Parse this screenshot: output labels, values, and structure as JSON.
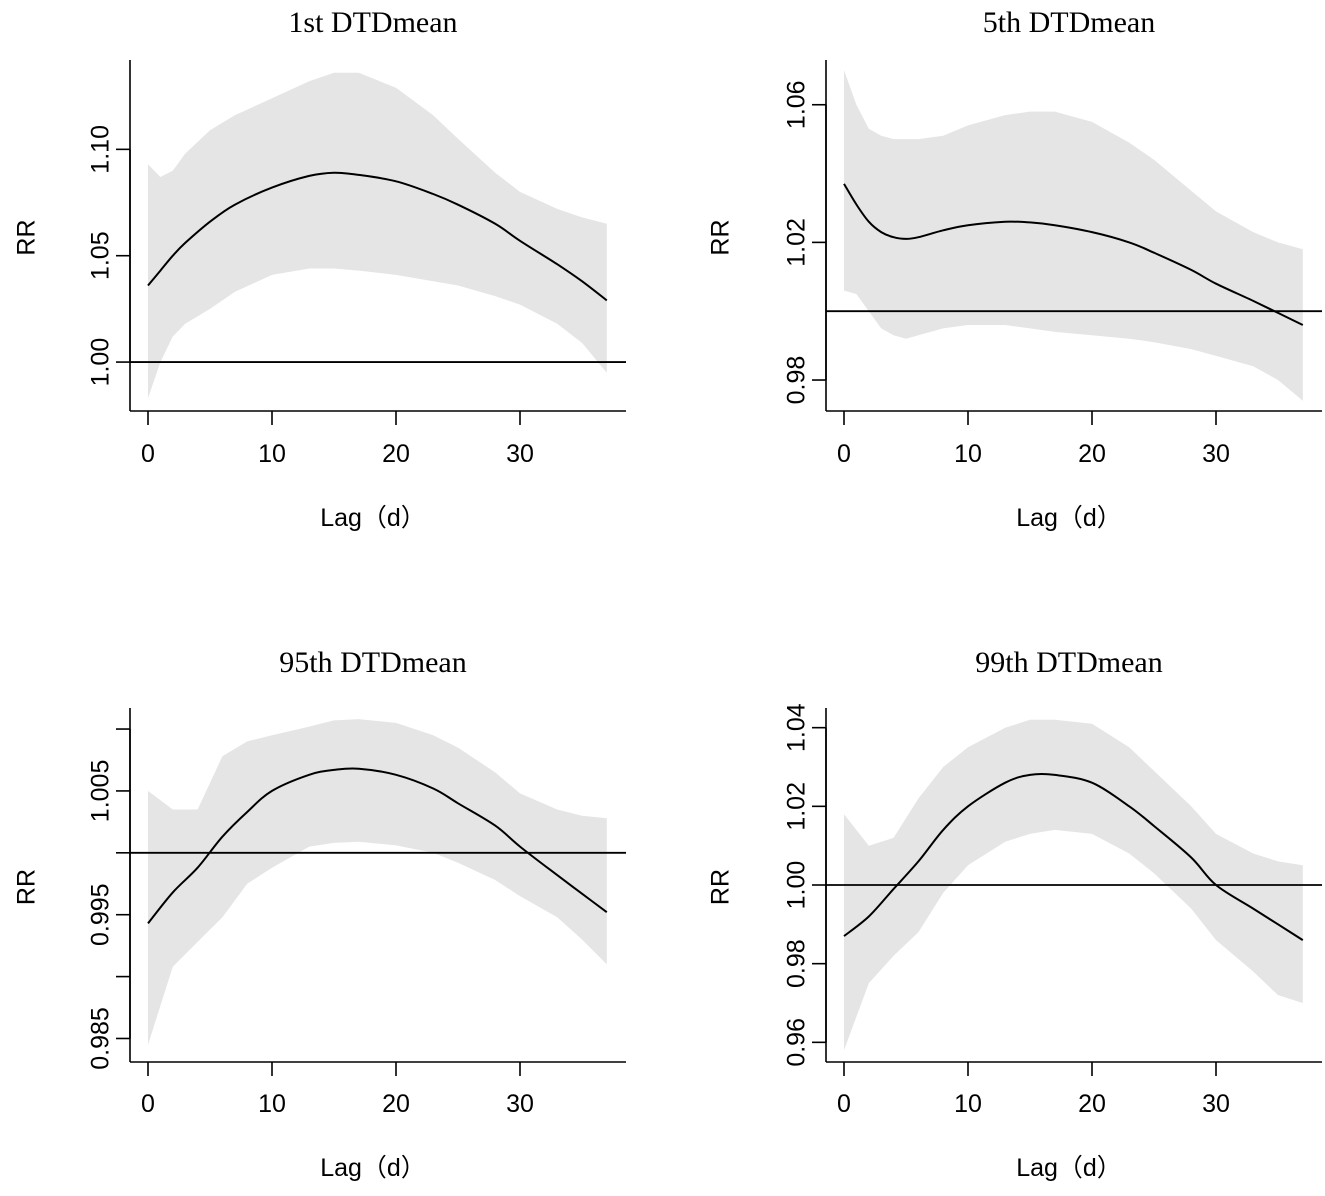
{
  "chart_data": [
    {
      "type": "line",
      "title": "1st DTDmean",
      "xlabel": "Lag（d）",
      "ylabel": "RR",
      "xlim": [
        -1.5,
        38.5
      ],
      "ylim": [
        0.977,
        1.142
      ],
      "xticks": [
        0,
        10,
        20,
        30
      ],
      "yticks": [
        1.0,
        1.05,
        1.1
      ],
      "ytick_labels": [
        "1.00",
        "1.05",
        "1.10"
      ],
      "reference_line": 1.0,
      "series": [
        {
          "name": "RR",
          "x": [
            0,
            1,
            2,
            3,
            5,
            7,
            10,
            13,
            15,
            17,
            20,
            23,
            25,
            28,
            30,
            33,
            35,
            37
          ],
          "values": [
            1.036,
            1.043,
            1.05,
            1.056,
            1.066,
            1.074,
            1.082,
            1.0875,
            1.089,
            1.088,
            1.085,
            1.079,
            1.074,
            1.065,
            1.057,
            1.046,
            1.038,
            1.029
          ],
          "lower": [
            0.983,
            1.0,
            1.012,
            1.018,
            1.025,
            1.033,
            1.041,
            1.044,
            1.044,
            1.043,
            1.041,
            1.038,
            1.036,
            1.031,
            1.027,
            1.018,
            1.009,
            0.995
          ],
          "upper": [
            1.093,
            1.087,
            1.09,
            1.098,
            1.109,
            1.116,
            1.124,
            1.132,
            1.136,
            1.136,
            1.129,
            1.116,
            1.105,
            1.089,
            1.08,
            1.072,
            1.068,
            1.065
          ]
        }
      ]
    },
    {
      "type": "line",
      "title": "5th DTDmean",
      "xlabel": "Lag（d）",
      "ylabel": "RR",
      "xlim": [
        -1.5,
        38.5
      ],
      "ylim": [
        0.971,
        1.073
      ],
      "xticks": [
        0,
        10,
        20,
        30
      ],
      "yticks": [
        0.98,
        1.02,
        1.06
      ],
      "ytick_labels": [
        "0.98",
        "1.02",
        "1.06"
      ],
      "reference_line": 1.0,
      "series": [
        {
          "name": "RR",
          "x": [
            0,
            1,
            2,
            3,
            4,
            5,
            6,
            8,
            10,
            13,
            15,
            17,
            20,
            23,
            25,
            28,
            30,
            33,
            35,
            37
          ],
          "values": [
            1.037,
            1.031,
            1.026,
            1.023,
            1.0215,
            1.021,
            1.0215,
            1.0235,
            1.025,
            1.026,
            1.0258,
            1.025,
            1.023,
            1.02,
            1.017,
            1.012,
            1.008,
            1.003,
            0.9995,
            0.996
          ],
          "lower": [
            1.006,
            1.005,
            1.0,
            0.995,
            0.993,
            0.992,
            0.993,
            0.995,
            0.996,
            0.996,
            0.995,
            0.994,
            0.993,
            0.992,
            0.991,
            0.989,
            0.987,
            0.984,
            0.98,
            0.974
          ],
          "upper": [
            1.07,
            1.06,
            1.053,
            1.051,
            1.05,
            1.05,
            1.05,
            1.051,
            1.054,
            1.057,
            1.058,
            1.058,
            1.055,
            1.049,
            1.044,
            1.035,
            1.029,
            1.023,
            1.02,
            1.018
          ]
        }
      ]
    },
    {
      "type": "line",
      "title": "95th DTDmean",
      "xlabel": "Lag（d）",
      "ylabel": "RR",
      "xlim": [
        -1.5,
        38.5
      ],
      "ylim": [
        0.9831,
        1.0117
      ],
      "xticks": [
        0,
        10,
        20,
        30
      ],
      "yticks": [
        0.985,
        0.995,
        1.005
      ],
      "ytick_labels": [
        "0.985",
        "0.995",
        "1.005"
      ],
      "extra_ticks": [
        0.99,
        1.0,
        1.01
      ],
      "reference_line": 1.0,
      "series": [
        {
          "name": "RR",
          "x": [
            0,
            2,
            4,
            6,
            8,
            10,
            13,
            15,
            17,
            20,
            23,
            25,
            28,
            30,
            33,
            35,
            37
          ],
          "values": [
            0.9943,
            0.9968,
            0.9988,
            1.0013,
            1.0033,
            1.005,
            1.0063,
            1.0067,
            1.0068,
            1.0063,
            1.0052,
            1.004,
            1.0022,
            1.0005,
            0.9982,
            0.9967,
            0.9952
          ],
          "lower": [
            0.9845,
            0.9908,
            0.9928,
            0.9948,
            0.9975,
            0.9988,
            1.0005,
            1.0008,
            1.0009,
            1.0006,
            1.0,
            0.9992,
            0.9978,
            0.9965,
            0.9948,
            0.993,
            0.991
          ],
          "upper": [
            1.005,
            1.0035,
            1.0035,
            1.0078,
            1.009,
            1.0095,
            1.0102,
            1.0107,
            1.0108,
            1.0105,
            1.0095,
            1.0085,
            1.0065,
            1.0048,
            1.0035,
            1.003,
            1.0028
          ]
        }
      ]
    },
    {
      "type": "line",
      "title": "99th DTDmean",
      "xlabel": "Lag（d）",
      "ylabel": "RR",
      "xlim": [
        -1.5,
        38.5
      ],
      "ylim": [
        0.955,
        1.045
      ],
      "xticks": [
        0,
        10,
        20,
        30
      ],
      "yticks": [
        0.96,
        0.98,
        1.0,
        1.02,
        1.04
      ],
      "ytick_labels": [
        "0.96",
        "0.98",
        "1.00",
        "1.02",
        "1.04"
      ],
      "reference_line": 1.0,
      "series": [
        {
          "name": "RR",
          "x": [
            0,
            2,
            4,
            6,
            8,
            10,
            13,
            15,
            17,
            20,
            23,
            25,
            28,
            30,
            33,
            35,
            37
          ],
          "values": [
            0.987,
            0.992,
            0.999,
            1.006,
            1.014,
            1.02,
            1.026,
            1.028,
            1.028,
            1.026,
            1.02,
            1.015,
            1.007,
            1.0,
            0.994,
            0.99,
            0.986
          ],
          "lower": [
            0.958,
            0.975,
            0.982,
            0.988,
            0.998,
            1.005,
            1.011,
            1.013,
            1.014,
            1.013,
            1.008,
            1.003,
            0.994,
            0.986,
            0.978,
            0.972,
            0.97
          ],
          "upper": [
            1.018,
            1.01,
            1.012,
            1.022,
            1.03,
            1.035,
            1.04,
            1.042,
            1.042,
            1.041,
            1.035,
            1.029,
            1.02,
            1.013,
            1.008,
            1.006,
            1.005
          ]
        }
      ]
    }
  ]
}
